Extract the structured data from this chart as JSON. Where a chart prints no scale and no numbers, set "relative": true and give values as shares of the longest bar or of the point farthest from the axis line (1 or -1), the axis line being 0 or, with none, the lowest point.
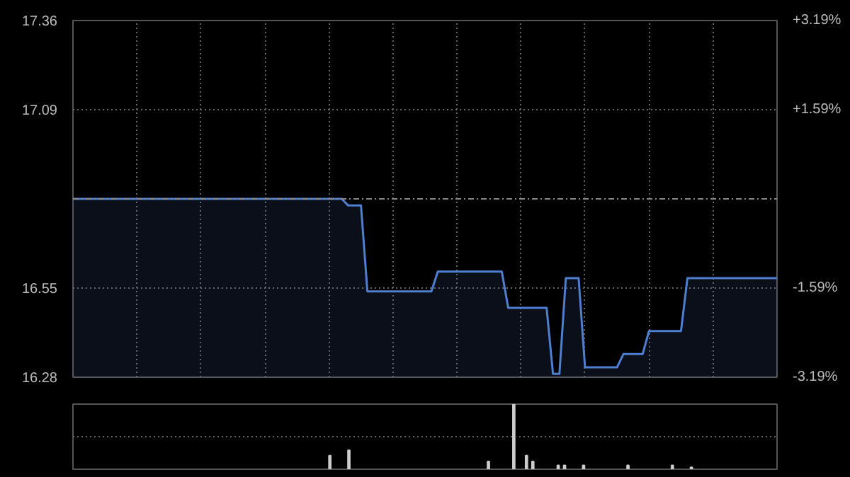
{
  "chart_data": [
    {
      "type": "area",
      "categories": [
        null,
        null,
        null,
        null,
        null,
        null,
        null,
        null,
        null,
        null,
        null,
        null,
        null,
        null,
        null,
        null,
        null,
        null,
        null,
        null,
        null,
        null,
        null,
        null,
        null,
        null,
        null,
        null,
        null,
        null,
        null,
        null,
        null,
        null,
        null,
        null,
        null,
        null,
        null,
        null,
        null,
        null,
        null,
        null,
        null,
        null,
        null,
        null,
        null,
        null,
        null,
        null,
        null,
        null,
        null,
        null,
        null,
        null,
        null,
        null,
        null,
        null,
        null,
        null,
        null,
        null,
        null,
        null,
        null,
        null,
        null,
        null,
        null,
        null,
        null,
        null,
        null,
        null,
        null,
        null,
        null,
        null,
        null,
        null,
        null,
        null,
        null,
        null,
        null,
        null,
        null,
        null,
        null,
        null,
        null,
        null,
        null,
        null,
        null,
        null,
        null,
        null,
        null,
        null,
        null,
        null,
        null,
        null,
        null,
        null,
        null
      ],
      "series": [
        {
          "color": "#4f7fd0",
          "values": [
            16.82,
            16.82,
            16.82,
            16.82,
            16.82,
            16.82,
            16.82,
            16.82,
            16.82,
            16.82,
            16.82,
            16.82,
            16.82,
            16.82,
            16.82,
            16.82,
            16.82,
            16.82,
            16.82,
            16.82,
            16.82,
            16.82,
            16.82,
            16.82,
            16.82,
            16.82,
            16.82,
            16.82,
            16.82,
            16.82,
            16.82,
            16.82,
            16.82,
            16.82,
            16.82,
            16.82,
            16.82,
            16.82,
            16.82,
            16.82,
            16.82,
            16.82,
            16.82,
            16.8,
            16.8,
            16.8,
            16.54,
            16.54,
            16.54,
            16.54,
            16.54,
            16.54,
            16.54,
            16.54,
            16.54,
            16.54,
            16.54,
            16.6,
            16.6,
            16.6,
            16.6,
            16.6,
            16.6,
            16.6,
            16.6,
            16.6,
            16.6,
            16.6,
            16.49,
            16.49,
            16.49,
            16.49,
            16.49,
            16.49,
            16.49,
            16.29,
            16.29,
            16.58,
            16.58,
            16.58,
            16.31,
            16.31,
            16.31,
            16.31,
            16.31,
            16.31,
            16.35,
            16.35,
            16.35,
            16.35,
            16.42,
            16.42,
            16.42,
            16.42,
            16.42,
            16.42,
            16.58,
            16.58,
            16.58,
            16.58,
            16.58,
            16.58,
            16.58,
            16.58,
            16.58,
            16.58,
            16.58,
            16.58,
            16.58,
            16.58,
            16.58
          ]
        }
      ],
      "ylim": [
        16.28,
        17.36
      ],
      "yticks": [
        16.28,
        16.55,
        17.09,
        17.36
      ],
      "y2lim": [
        -3.19,
        3.19
      ],
      "y2ticks": [
        {
          "value": -3.19,
          "label": "-3.19%"
        },
        {
          "value": -1.59,
          "label": "-1.59%"
        },
        {
          "value": 1.59,
          "label": "+1.59%"
        },
        {
          "value": 3.19,
          "label": "+3.19%"
        }
      ],
      "ref_lines": [
        {
          "axis": "y",
          "value": 16.82,
          "line_style": "dashed"
        }
      ],
      "grid": true,
      "tick_labels": "y"
    },
    {
      "type": "bar",
      "relative": true,
      "categories": [
        null,
        null,
        null,
        null,
        null,
        null,
        null,
        null,
        null,
        null,
        null,
        null,
        null,
        null,
        null,
        null,
        null,
        null,
        null,
        null,
        null,
        null,
        null,
        null,
        null,
        null,
        null,
        null,
        null,
        null,
        null,
        null,
        null,
        null,
        null,
        null,
        null,
        null,
        null,
        null,
        null,
        null,
        null,
        null,
        null,
        null,
        null,
        null,
        null,
        null,
        null,
        null,
        null,
        null,
        null,
        null,
        null,
        null,
        null,
        null,
        null,
        null,
        null,
        null,
        null,
        null,
        null,
        null,
        null,
        null,
        null,
        null,
        null,
        null,
        null,
        null,
        null,
        null,
        null,
        null,
        null,
        null,
        null,
        null,
        null,
        null,
        null,
        null,
        null,
        null,
        null,
        null,
        null,
        null,
        null,
        null,
        null,
        null,
        null,
        null,
        null,
        null,
        null,
        null,
        null,
        null,
        null,
        null,
        null,
        null,
        null
      ],
      "series": [
        {
          "color": "#cccccc",
          "values": [
            null,
            null,
            null,
            null,
            null,
            null,
            null,
            null,
            null,
            null,
            null,
            null,
            null,
            null,
            null,
            null,
            null,
            null,
            null,
            null,
            null,
            null,
            null,
            null,
            null,
            null,
            null,
            null,
            null,
            null,
            null,
            null,
            null,
            null,
            null,
            null,
            null,
            null,
            null,
            null,
            0.21,
            null,
            null,
            0.29,
            null,
            null,
            null,
            null,
            null,
            null,
            null,
            null,
            null,
            null,
            null,
            null,
            null,
            null,
            null,
            null,
            null,
            null,
            null,
            null,
            null,
            0.12,
            null,
            null,
            null,
            1,
            null,
            0.21,
            0.12,
            null,
            null,
            null,
            0.06,
            0.06,
            null,
            null,
            0.06,
            null,
            null,
            null,
            null,
            null,
            null,
            0.06,
            null,
            null,
            null,
            null,
            null,
            null,
            0.06,
            null,
            null,
            0.03,
            null,
            null,
            null,
            null,
            null,
            null,
            null,
            null,
            null,
            null,
            null,
            null,
            null
          ]
        }
      ],
      "ref_lines": [
        {
          "axis": "y",
          "value": 0.5,
          "line_style": "dotted",
          "color": "#666666"
        }
      ],
      "tick_labels": false
    }
  ]
}
